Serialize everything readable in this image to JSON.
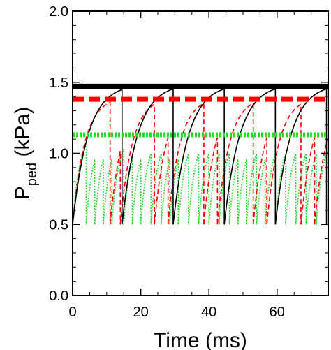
{
  "chart_data": {
    "type": "line",
    "title": "",
    "xlabel": "Time (ms)",
    "ylabel": {
      "main": "P",
      "subscript": "ped",
      "unit": " (kPa)"
    },
    "xlim": [
      0,
      75
    ],
    "ylim": [
      0,
      2.0
    ],
    "x_ticks": [
      0,
      20,
      40,
      60
    ],
    "x_tick_labels": [
      "0",
      "20",
      "40",
      "60"
    ],
    "y_ticks": [
      0.0,
      0.5,
      1.0,
      1.5,
      2.0
    ],
    "y_tick_labels": [
      "0.0",
      "0.5",
      "1.0",
      "1.5",
      "2.0"
    ],
    "grid": false,
    "legend": "none",
    "series": [
      {
        "color": "#000000",
        "style": "solid",
        "threshold": 1.47,
        "reset": 0.5,
        "sawtooth_cycles": [
          [
            0,
            14.5
          ],
          [
            14.5,
            29.5
          ],
          [
            29.5,
            44.5
          ],
          [
            44.5,
            59.5
          ],
          [
            59.5,
            74.5
          ]
        ],
        "saturation_tau_ms": 4.5
      },
      {
        "color": "#ff0000",
        "style": "dashed",
        "threshold": 1.38,
        "reset": 0.5,
        "sawtooth_cycles": [
          [
            0,
            11
          ],
          [
            11,
            14
          ],
          [
            14,
            24
          ],
          [
            24,
            28
          ],
          [
            28,
            38.5
          ],
          [
            38.5,
            42.5
          ],
          [
            42.5,
            53
          ],
          [
            53,
            57
          ],
          [
            57,
            67
          ],
          [
            67,
            71
          ],
          [
            71,
            75
          ]
        ],
        "saturation_tau_ms": 3.5
      },
      {
        "color": "#22dd22",
        "style": "dotted",
        "threshold": 1.13,
        "reset": 0.5,
        "sawtooth_cycles": [
          [
            0,
            4
          ],
          [
            4,
            6.5
          ],
          [
            6.5,
            9
          ],
          [
            9,
            11.5
          ],
          [
            11.5,
            15
          ],
          [
            15,
            17.5
          ],
          [
            17.5,
            20
          ],
          [
            20,
            23
          ],
          [
            23,
            26
          ],
          [
            26,
            28.5
          ],
          [
            28.5,
            31
          ],
          [
            31,
            34
          ],
          [
            34,
            37
          ],
          [
            37,
            40
          ],
          [
            40,
            43
          ],
          [
            43,
            46
          ],
          [
            46,
            48.5
          ],
          [
            48.5,
            51
          ],
          [
            51,
            54
          ],
          [
            54,
            56.5
          ],
          [
            56.5,
            59.5
          ],
          [
            59.5,
            62.5
          ],
          [
            62.5,
            65.5
          ],
          [
            65.5,
            68.5
          ],
          [
            68.5,
            71.5
          ],
          [
            71.5,
            75
          ]
        ],
        "saturation_tau_ms": 2.0
      }
    ]
  }
}
